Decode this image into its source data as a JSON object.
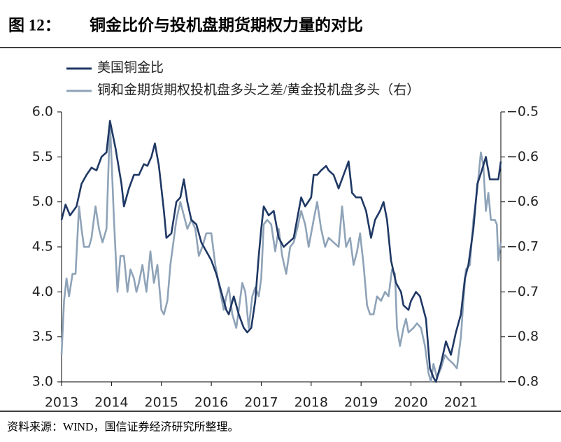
{
  "chart_data": {
    "type": "line",
    "figure_label": "图 12：",
    "title": "铜金比价与投机盘期货期权力量的对比",
    "source": "资料来源：WIND，国信证券经济研究所整理。",
    "legend": "top-left",
    "xlim": [
      2013,
      2021.8
    ],
    "xticks": [
      2013,
      2014,
      2015,
      2016,
      2017,
      2018,
      2019,
      2020,
      2021
    ],
    "ylim": [
      3.0,
      6.0
    ],
    "yticks": [
      {
        "value": 3.0,
        "label": "3.0"
      },
      {
        "value": 3.5,
        "label": "3.5"
      },
      {
        "value": 4.0,
        "label": "4.0"
      },
      {
        "value": 4.5,
        "label": "4.5"
      },
      {
        "value": 5.0,
        "label": "5.0"
      },
      {
        "value": 5.5,
        "label": "5.5"
      },
      {
        "value": 6.0,
        "label": "6.0"
      }
    ],
    "y2lim": [
      -0.8,
      -0.5
    ],
    "y2ticks": [
      {
        "value": -0.8,
        "label": "−0.8"
      },
      {
        "value": -0.75,
        "label": "−0.8"
      },
      {
        "value": -0.7,
        "label": "−0.7"
      },
      {
        "value": -0.65,
        "label": "−0.7"
      },
      {
        "value": -0.6,
        "label": "−0.6"
      },
      {
        "value": -0.55,
        "label": "−0.6"
      },
      {
        "value": -0.5,
        "label": "−0.5"
      }
    ],
    "series": [
      {
        "name": "美国铜金比",
        "color": "#1f3864",
        "axis": "y",
        "x": [
          2013.0,
          2013.08,
          2013.17,
          2013.3,
          2013.4,
          2013.5,
          2013.6,
          2013.7,
          2013.8,
          2013.9,
          2013.97,
          2014.08,
          2014.2,
          2014.25,
          2014.35,
          2014.45,
          2014.55,
          2014.65,
          2014.72,
          2014.8,
          2014.87,
          2014.95,
          2015.05,
          2015.1,
          2015.2,
          2015.3,
          2015.38,
          2015.45,
          2015.52,
          2015.6,
          2015.7,
          2015.8,
          2015.9,
          2016.0,
          2016.1,
          2016.2,
          2016.3,
          2016.35,
          2016.45,
          2016.55,
          2016.65,
          2016.72,
          2016.8,
          2016.88,
          2016.95,
          2017.0,
          2017.05,
          2017.15,
          2017.25,
          2017.35,
          2017.45,
          2017.55,
          2017.65,
          2017.75,
          2017.8,
          2017.88,
          2018.0,
          2018.05,
          2018.12,
          2018.2,
          2018.3,
          2018.35,
          2018.45,
          2018.55,
          2018.65,
          2018.75,
          2018.82,
          2018.9,
          2019.0,
          2019.1,
          2019.2,
          2019.28,
          2019.38,
          2019.45,
          2019.52,
          2019.6,
          2019.7,
          2019.8,
          2019.85,
          2019.95,
          2020.0,
          2020.1,
          2020.18,
          2020.3,
          2020.38,
          2020.45,
          2020.5,
          2020.6,
          2020.7,
          2020.8,
          2020.9,
          2021.0,
          2021.08,
          2021.15,
          2021.25,
          2021.33,
          2021.42,
          2021.5,
          2021.58,
          2021.7,
          2021.75,
          2021.8
        ],
        "values": [
          4.8,
          4.97,
          4.85,
          4.95,
          5.2,
          5.3,
          5.38,
          5.35,
          5.5,
          5.55,
          5.9,
          5.6,
          5.2,
          4.95,
          5.15,
          5.3,
          5.3,
          5.42,
          5.4,
          5.5,
          5.65,
          5.4,
          4.9,
          4.6,
          4.65,
          5.0,
          5.05,
          5.25,
          5.0,
          4.8,
          4.75,
          4.55,
          4.45,
          4.35,
          4.2,
          4.0,
          3.8,
          3.75,
          3.95,
          3.75,
          3.6,
          3.55,
          3.6,
          3.9,
          4.4,
          4.7,
          4.95,
          4.85,
          4.9,
          4.6,
          4.5,
          4.55,
          4.6,
          4.9,
          5.05,
          4.95,
          5.05,
          5.3,
          5.3,
          5.35,
          5.4,
          5.35,
          5.3,
          5.15,
          5.3,
          5.45,
          5.1,
          5.05,
          5.05,
          4.9,
          4.6,
          4.8,
          4.9,
          5.0,
          4.8,
          4.35,
          4.1,
          4.0,
          3.85,
          3.8,
          3.9,
          4.0,
          3.95,
          3.7,
          3.15,
          3.05,
          3.0,
          3.2,
          3.45,
          3.3,
          3.55,
          3.75,
          4.15,
          4.3,
          4.7,
          5.2,
          5.35,
          5.5,
          5.25,
          5.25,
          5.25,
          5.45
        ]
      },
      {
        "name": "铜和金期货期权投机盘多头之差/黄金投机盘多头（右）",
        "color": "#8fa3b8",
        "axis": "y2",
        "x": [
          2013.0,
          2013.05,
          2013.1,
          2013.15,
          2013.22,
          2013.28,
          2013.35,
          2013.4,
          2013.45,
          2013.55,
          2013.6,
          2013.68,
          2013.75,
          2013.82,
          2013.9,
          2013.97,
          2014.05,
          2014.12,
          2014.18,
          2014.25,
          2014.32,
          2014.38,
          2014.45,
          2014.5,
          2014.55,
          2014.62,
          2014.7,
          2014.78,
          2014.85,
          2014.92,
          2015.0,
          2015.05,
          2015.12,
          2015.18,
          2015.3,
          2015.38,
          2015.45,
          2015.52,
          2015.6,
          2015.68,
          2015.75,
          2015.82,
          2015.9,
          2016.0,
          2016.08,
          2016.18,
          2016.25,
          2016.3,
          2016.35,
          2016.42,
          2016.5,
          2016.55,
          2016.62,
          2016.68,
          2016.75,
          2016.82,
          2016.88,
          2016.95,
          2017.0,
          2017.05,
          2017.12,
          2017.2,
          2017.28,
          2017.35,
          2017.42,
          2017.5,
          2017.58,
          2017.65,
          2017.72,
          2017.8,
          2017.88,
          2017.95,
          2018.05,
          2018.12,
          2018.2,
          2018.28,
          2018.35,
          2018.45,
          2018.55,
          2018.62,
          2018.7,
          2018.78,
          2018.85,
          2018.92,
          2018.98,
          2019.05,
          2019.12,
          2019.18,
          2019.25,
          2019.32,
          2019.4,
          2019.48,
          2019.55,
          2019.62,
          2019.68,
          2019.72,
          2019.78,
          2019.85,
          2019.9,
          2019.95,
          2020.05,
          2020.12,
          2020.2,
          2020.28,
          2020.35,
          2020.4,
          2020.45,
          2020.52,
          2020.6,
          2020.68,
          2020.75,
          2020.85,
          2020.92,
          2021.0,
          2021.05,
          2021.1,
          2021.18,
          2021.25,
          2021.32,
          2021.4,
          2021.45,
          2021.5,
          2021.55,
          2021.6,
          2021.68,
          2021.72,
          2021.75,
          2021.8
        ],
        "values": [
          -0.77,
          -0.71,
          -0.685,
          -0.705,
          -0.68,
          -0.68,
          -0.605,
          -0.63,
          -0.65,
          -0.65,
          -0.64,
          -0.605,
          -0.63,
          -0.645,
          -0.63,
          -0.51,
          -0.62,
          -0.7,
          -0.66,
          -0.66,
          -0.7,
          -0.675,
          -0.685,
          -0.7,
          -0.69,
          -0.67,
          -0.7,
          -0.655,
          -0.69,
          -0.67,
          -0.72,
          -0.725,
          -0.71,
          -0.67,
          -0.62,
          -0.6,
          -0.615,
          -0.63,
          -0.62,
          -0.63,
          -0.66,
          -0.65,
          -0.635,
          -0.635,
          -0.67,
          -0.7,
          -0.72,
          -0.705,
          -0.695,
          -0.725,
          -0.74,
          -0.72,
          -0.69,
          -0.7,
          -0.74,
          -0.705,
          -0.695,
          -0.705,
          -0.685,
          -0.625,
          -0.62,
          -0.625,
          -0.655,
          -0.63,
          -0.66,
          -0.68,
          -0.65,
          -0.645,
          -0.63,
          -0.61,
          -0.625,
          -0.65,
          -0.62,
          -0.6,
          -0.63,
          -0.65,
          -0.64,
          -0.645,
          -0.65,
          -0.605,
          -0.65,
          -0.64,
          -0.67,
          -0.655,
          -0.635,
          -0.67,
          -0.715,
          -0.725,
          -0.725,
          -0.705,
          -0.71,
          -0.7,
          -0.705,
          -0.675,
          -0.68,
          -0.74,
          -0.76,
          -0.74,
          -0.73,
          -0.745,
          -0.74,
          -0.735,
          -0.74,
          -0.76,
          -0.79,
          -0.8,
          -0.78,
          -0.795,
          -0.785,
          -0.77,
          -0.775,
          -0.78,
          -0.785,
          -0.75,
          -0.71,
          -0.675,
          -0.67,
          -0.62,
          -0.59,
          -0.545,
          -0.56,
          -0.61,
          -0.59,
          -0.62,
          -0.62,
          -0.625,
          -0.665,
          -0.645
        ]
      }
    ]
  }
}
